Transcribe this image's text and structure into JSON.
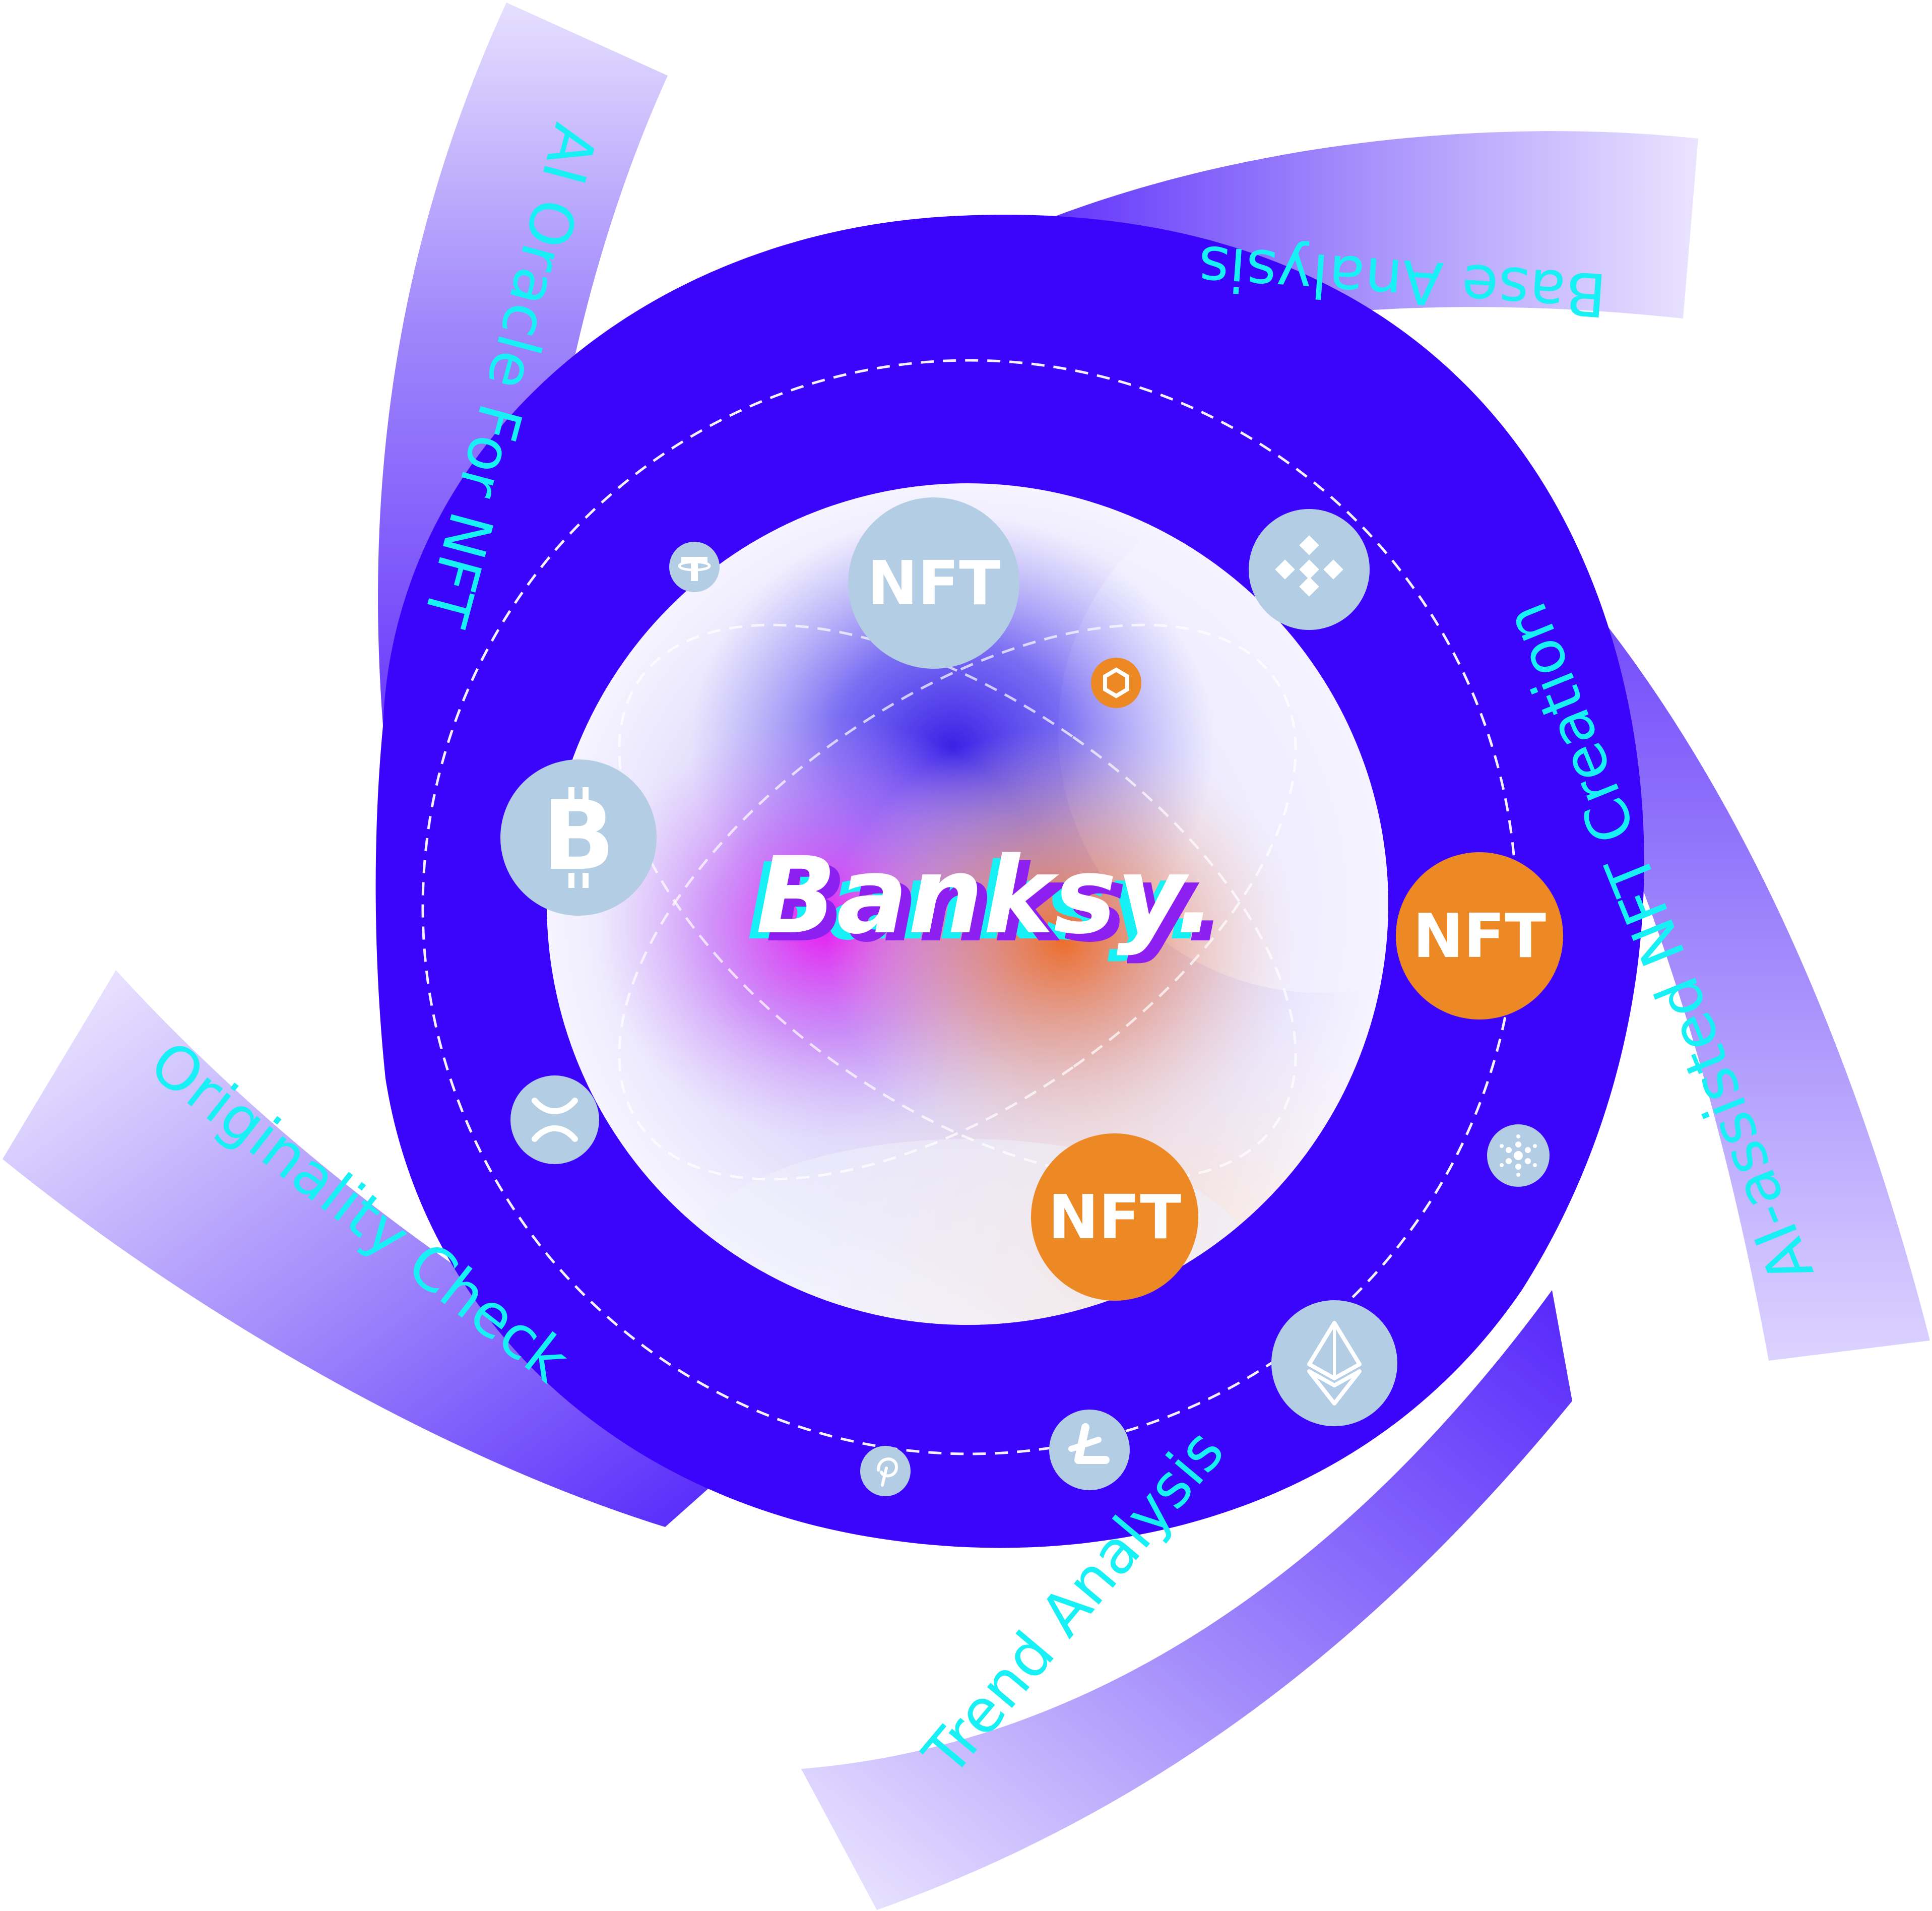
{
  "brand": {
    "name": "Banksy."
  },
  "bands": {
    "ai_oracle": "AI Oracle For NFT",
    "base_analysis": "Base Analysis",
    "ai_assisted": "AI-assisted NFT Creation",
    "originality": "Originality Check",
    "trend": "Trend Analysis"
  },
  "tokens": {
    "nft_top": "NFT",
    "nft_right": "NFT",
    "nft_bottom": "NFT"
  },
  "icons": [
    "tether-icon",
    "binance-icon",
    "chainlink-icon",
    "bitcoin-icon",
    "ripple-icon",
    "cardano-icon",
    "ethereum-icon",
    "litecoin-icon",
    "polkadot-icon"
  ],
  "colors": {
    "ring": "#3b05fb",
    "band": "#7a55fb",
    "label": "#17f1f6",
    "coin_blue": "#b2cde4",
    "coin_orange": "#ec8924",
    "core_purple": "#3b22e6",
    "core_magenta": "#e81ef2",
    "core_orange": "#ef6b23"
  }
}
